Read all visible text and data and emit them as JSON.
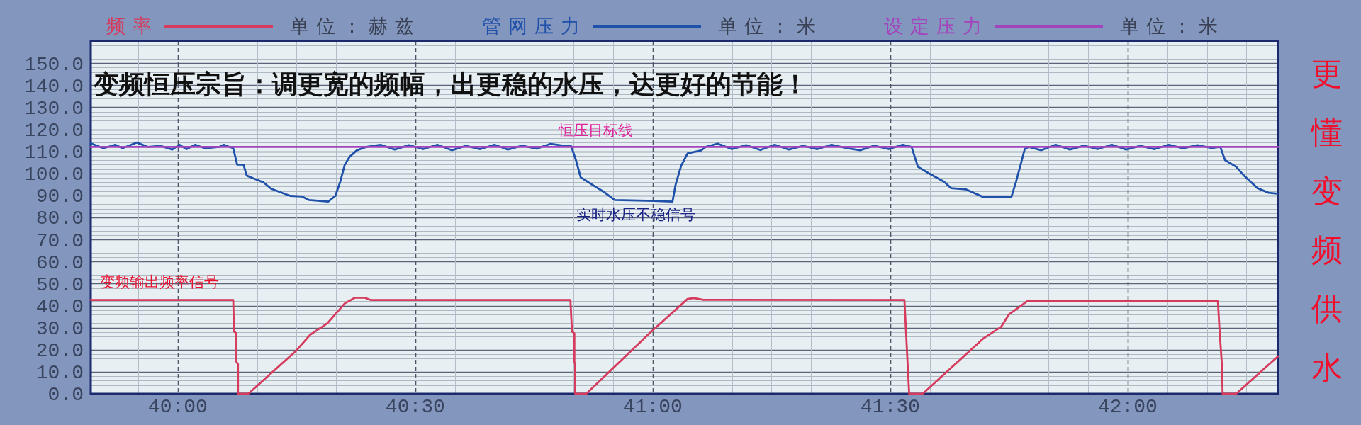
{
  "chart_data": {
    "type": "line",
    "title": "变频恒压宗旨：调更宽的频幅，出更稳的水压，达更好的节能！",
    "xlim": [
      2389,
      2539
    ],
    "ylim": [
      0,
      160
    ],
    "xticks": [
      {
        "value": 2390,
        "label": null
      },
      {
        "value": 2395,
        "label": null
      },
      {
        "value": 2400,
        "label": "40:00"
      },
      {
        "value": 2405,
        "label": null
      },
      {
        "value": 2410,
        "label": null
      },
      {
        "value": 2415,
        "label": null
      },
      {
        "value": 2420,
        "label": null
      },
      {
        "value": 2425,
        "label": null
      },
      {
        "value": 2430,
        "label": "40:30"
      },
      {
        "value": 2435,
        "label": null
      },
      {
        "value": 2440,
        "label": null
      },
      {
        "value": 2445,
        "label": null
      },
      {
        "value": 2450,
        "label": null
      },
      {
        "value": 2455,
        "label": null
      },
      {
        "value": 2460,
        "label": "41:00"
      },
      {
        "value": 2465,
        "label": null
      },
      {
        "value": 2470,
        "label": null
      },
      {
        "value": 2475,
        "label": null
      },
      {
        "value": 2480,
        "label": null
      },
      {
        "value": 2485,
        "label": null
      },
      {
        "value": 2490,
        "label": "41:30"
      },
      {
        "value": 2495,
        "label": null
      },
      {
        "value": 2500,
        "label": null
      },
      {
        "value": 2505,
        "label": null
      },
      {
        "value": 2510,
        "label": null
      },
      {
        "value": 2515,
        "label": null
      },
      {
        "value": 2520,
        "label": "42:00"
      },
      {
        "value": 2525,
        "label": null
      },
      {
        "value": 2530,
        "label": null
      },
      {
        "value": 2535,
        "label": null
      }
    ],
    "yticks": [
      {
        "value": 0,
        "label": "0.0"
      },
      {
        "value": 2,
        "label": null
      },
      {
        "value": 4,
        "label": null
      },
      {
        "value": 6,
        "label": null
      },
      {
        "value": 8,
        "label": null
      },
      {
        "value": 10,
        "label": "10.0"
      },
      {
        "value": 12,
        "label": null
      },
      {
        "value": 14,
        "label": null
      },
      {
        "value": 16,
        "label": null
      },
      {
        "value": 18,
        "label": null
      },
      {
        "value": 20,
        "label": "20.0"
      },
      {
        "value": 22,
        "label": null
      },
      {
        "value": 24,
        "label": null
      },
      {
        "value": 26,
        "label": null
      },
      {
        "value": 28,
        "label": null
      },
      {
        "value": 30,
        "label": "30.0"
      },
      {
        "value": 32,
        "label": null
      },
      {
        "value": 34,
        "label": null
      },
      {
        "value": 36,
        "label": null
      },
      {
        "value": 38,
        "label": null
      },
      {
        "value": 40,
        "label": "40.0"
      },
      {
        "value": 42,
        "label": null
      },
      {
        "value": 44,
        "label": null
      },
      {
        "value": 46,
        "label": null
      },
      {
        "value": 48,
        "label": null
      },
      {
        "value": 50,
        "label": "50.0"
      },
      {
        "value": 52,
        "label": null
      },
      {
        "value": 54,
        "label": null
      },
      {
        "value": 56,
        "label": null
      },
      {
        "value": 58,
        "label": null
      },
      {
        "value": 60,
        "label": "60.0"
      },
      {
        "value": 62,
        "label": null
      },
      {
        "value": 64,
        "label": null
      },
      {
        "value": 66,
        "label": null
      },
      {
        "value": 68,
        "label": null
      },
      {
        "value": 70,
        "label": "70.0"
      },
      {
        "value": 72,
        "label": null
      },
      {
        "value": 74,
        "label": null
      },
      {
        "value": 76,
        "label": null
      },
      {
        "value": 78,
        "label": null
      },
      {
        "value": 80,
        "label": "80.0"
      },
      {
        "value": 82,
        "label": null
      },
      {
        "value": 84,
        "label": null
      },
      {
        "value": 86,
        "label": null
      },
      {
        "value": 88,
        "label": null
      },
      {
        "value": 90,
        "label": "90.0"
      },
      {
        "value": 92,
        "label": null
      },
      {
        "value": 94,
        "label": null
      },
      {
        "value": 96,
        "label": null
      },
      {
        "value": 98,
        "label": null
      },
      {
        "value": 100,
        "label": "100.0"
      },
      {
        "value": 102,
        "label": null
      },
      {
        "value": 104,
        "label": null
      },
      {
        "value": 106,
        "label": null
      },
      {
        "value": 108,
        "label": null
      },
      {
        "value": 110,
        "label": "110.0"
      },
      {
        "value": 112,
        "label": null
      },
      {
        "value": 114,
        "label": null
      },
      {
        "value": 116,
        "label": null
      },
      {
        "value": 118,
        "label": null
      },
      {
        "value": 120,
        "label": "120.0"
      },
      {
        "value": 122,
        "label": null
      },
      {
        "value": 124,
        "label": null
      },
      {
        "value": 126,
        "label": null
      },
      {
        "value": 128,
        "label": null
      },
      {
        "value": 130,
        "label": "130.0"
      },
      {
        "value": 132,
        "label": null
      },
      {
        "value": 134,
        "label": null
      },
      {
        "value": 136,
        "label": null
      },
      {
        "value": 138,
        "label": null
      },
      {
        "value": 140,
        "label": "140.0"
      },
      {
        "value": 142,
        "label": null
      },
      {
        "value": 144,
        "label": null
      },
      {
        "value": 146,
        "label": null
      },
      {
        "value": 148,
        "label": null
      },
      {
        "value": 150,
        "label": "150.0"
      },
      {
        "value": 152,
        "label": null
      },
      {
        "value": 154,
        "label": null
      },
      {
        "value": 156,
        "label": null
      },
      {
        "value": 158,
        "label": null
      },
      {
        "value": 160,
        "label": null
      }
    ],
    "series": [
      {
        "name": "频率",
        "color": "#d63a5c",
        "x": [
          2389,
          2407.0,
          2407.1,
          2407.4,
          2407.4,
          2407.6,
          2407.6,
          2408.9,
          2415.0,
          2416.7,
          2418.9,
          2421.1,
          2422.4,
          2423.6,
          2424.4,
          2449.6,
          2449.8,
          2450.1,
          2450.1,
          2450.2,
          2450.2,
          2451.6,
          2459.9,
          2464.4,
          2465.2,
          2466.4,
          2491.8,
          2492.0,
          2492.2,
          2492.4,
          2494.1,
          2501.8,
          2504.0,
          2505.0,
          2507.3,
          2531.4,
          2531.6,
          2531.9,
          2532.0,
          2533.7,
          2538.5,
          2539
        ],
        "values": [
          42.5,
          42.5,
          28.3,
          27.4,
          14.5,
          13.5,
          0,
          0,
          19.7,
          26.7,
          32,
          41,
          43.6,
          43.6,
          42.5,
          42.5,
          28.3,
          27.4,
          14.5,
          13.5,
          0,
          0,
          28.5,
          43,
          43.4,
          42.6,
          42.5,
          28.3,
          13.6,
          0,
          0,
          25.2,
          30.3,
          36,
          42,
          42,
          29.3,
          13.5,
          0,
          0,
          15.4,
          17
        ]
      },
      {
        "name": "管网压力",
        "color": "#1f50aa",
        "x": [
          2389,
          2390.6,
          2392.1,
          2393.0,
          2394.8,
          2396.2,
          2397.8,
          2399.3,
          2400.2,
          2401.1,
          2402.2,
          2403.4,
          2405.2,
          2405.8,
          2407.0,
          2407.5,
          2408.3,
          2408.7,
          2409.7,
          2410.8,
          2411.8,
          2413.0,
          2414.2,
          2415.7,
          2416.6,
          2419.0,
          2419.9,
          2420.5,
          2421.1,
          2421.7,
          2422.6,
          2423.8,
          2425.6,
          2427.4,
          2429.2,
          2431.0,
          2432.8,
          2434.6,
          2436.4,
          2438.2,
          2440.0,
          2441.7,
          2443.5,
          2445.3,
          2447.1,
          2448.9,
          2449.7,
          2450.3,
          2450.9,
          2452.3,
          2453.7,
          2455.2,
          2460.2,
          2462.5,
          2462.9,
          2463.6,
          2464.4,
          2466.1,
          2466.7,
          2468.2,
          2470.0,
          2471.8,
          2473.6,
          2475.4,
          2477.2,
          2479.0,
          2480.8,
          2482.6,
          2484.4,
          2486.2,
          2488.0,
          2489.8,
          2491.6,
          2492.7,
          2493.5,
          2494.9,
          2496.8,
          2497.7,
          2499.6,
          2501.8,
          2505.3,
          2505.9,
          2507.0,
          2507.5,
          2509.1,
          2510.9,
          2512.7,
          2514.5,
          2516.2,
          2518.0,
          2519.8,
          2521.6,
          2523.4,
          2525.2,
          2527.0,
          2528.8,
          2530.6,
          2531.7,
          2532.3,
          2533.7,
          2534.7,
          2536.4,
          2537.8,
          2538.9
        ],
        "values": [
          113.6,
          111.4,
          113,
          111.4,
          114,
          112,
          112.5,
          110.8,
          113,
          111,
          113,
          111.4,
          112,
          113,
          111.4,
          104,
          104,
          99,
          97.5,
          96,
          93,
          91.4,
          89.8,
          89.5,
          87.9,
          87.2,
          89.8,
          96,
          104,
          107.5,
          110.4,
          112,
          113,
          110.8,
          112.8,
          111,
          113,
          110.5,
          112.5,
          111,
          113,
          110.8,
          112.6,
          111.2,
          113.4,
          112.5,
          112.3,
          106,
          98.2,
          95,
          91.9,
          87.9,
          87.5,
          87.2,
          95,
          103.6,
          109,
          110.4,
          112,
          113.5,
          111,
          112.8,
          110.6,
          113,
          110.8,
          112.5,
          111,
          113,
          111.5,
          110.5,
          112.6,
          111,
          113,
          112,
          103,
          100,
          96.2,
          93.3,
          92.7,
          89.2,
          89.2,
          96.2,
          111,
          112,
          110.5,
          113,
          110.8,
          112.6,
          111,
          113,
          110.8,
          112.5,
          111,
          113,
          111.4,
          112.8,
          111.5,
          112,
          106,
          103,
          99,
          93.3,
          91.2,
          90.8
        ]
      },
      {
        "name": "设定压力",
        "color": "#a444bc",
        "x": [
          2389,
          2539
        ],
        "values": [
          112,
          112
        ]
      }
    ],
    "annotations": [
      "单位：赫兹",
      "单位：米",
      "单位：米",
      {
        "text": "恒压目标线",
        "x": 2452.8,
        "y": 112
      },
      {
        "text": "实时水压不稳信号",
        "x": 2457.9,
        "y": 87.5
      },
      {
        "text": "变频输出频率信号",
        "x": 2397.7,
        "y": 42.5
      },
      "更懂变频供水"
    ],
    "grid": true,
    "legend": "top",
    "marker": "none",
    "line_style": "solid"
  }
}
